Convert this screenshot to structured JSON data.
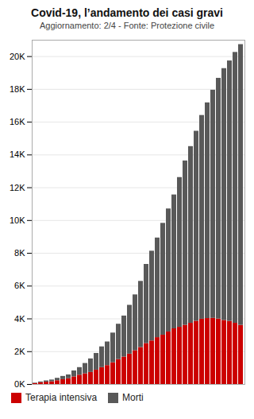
{
  "chart_data": {
    "type": "bar",
    "title": "Covid-19, l’andamento dei casi gravi",
    "subtitle": "Aggiornamento: 2/4 - Fonte: Protezione civile",
    "categories": [
      null,
      null,
      null,
      null,
      null,
      null,
      null,
      null,
      null,
      null,
      null,
      null,
      null,
      null,
      null,
      null,
      null,
      null,
      null,
      null,
      null,
      null,
      null,
      null,
      null,
      null,
      null,
      null,
      null,
      null,
      null,
      null,
      null,
      null,
      null,
      null,
      null,
      null
    ],
    "series": [
      {
        "name": "Terapia intensiva",
        "color": "#cc0000",
        "values": [
          54,
          105,
          140,
          166,
          229,
          295,
          351,
          462,
          567,
          650,
          733,
          877,
          1028,
          1153,
          1328,
          1518,
          1672,
          1851,
          2060,
          2257,
          2498,
          2655,
          2857,
          3009,
          3204,
          3396,
          3489,
          3612,
          3732,
          3856,
          3981,
          4023,
          4035,
          3994,
          3906,
          3848,
          3732,
          3605
        ]
      },
      {
        "name": "Morti",
        "color": "#595959",
        "values": [
          29,
          52,
          79,
          107,
          148,
          197,
          233,
          366,
          463,
          631,
          827,
          1016,
          1266,
          1441,
          1809,
          2158,
          2503,
          2978,
          3405,
          4032,
          4825,
          5476,
          6077,
          6820,
          7503,
          8165,
          9134,
          10023,
          10779,
          11591,
          12428,
          13155,
          13915,
          14681,
          15362,
          15887,
          16523,
          17127
        ]
      }
    ],
    "stacked": true,
    "ylim": [
      0,
      21000
    ],
    "yticks": [
      {
        "value": 0,
        "label": "0K"
      },
      {
        "value": 2000,
        "label": "2K"
      },
      {
        "value": 4000,
        "label": "4K"
      },
      {
        "value": 6000,
        "label": "6K"
      },
      {
        "value": 8000,
        "label": "8K"
      },
      {
        "value": 10000,
        "label": "10K"
      },
      {
        "value": 12000,
        "label": "12K"
      },
      {
        "value": 14000,
        "label": "14K"
      },
      {
        "value": 16000,
        "label": "16K"
      },
      {
        "value": 18000,
        "label": "18K"
      },
      {
        "value": 20000,
        "label": "20K"
      }
    ],
    "grid": true,
    "legend": "bottom",
    "tick_labels": "y"
  }
}
